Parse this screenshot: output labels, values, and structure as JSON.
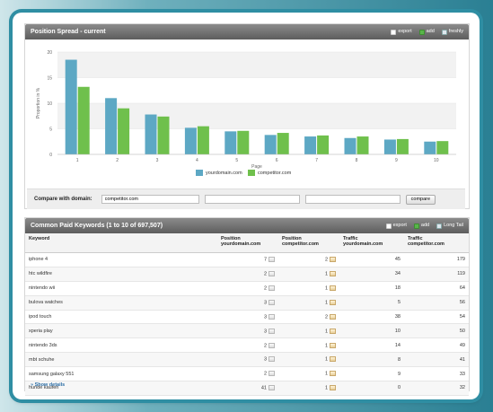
{
  "chart_panel": {
    "title": "Position Spread - current",
    "actions": [
      {
        "label": "export",
        "icon": "export-icon"
      },
      {
        "label": "add",
        "icon": "add-icon"
      },
      {
        "label": "freshly",
        "icon": "freshly-icon"
      }
    ]
  },
  "chart_data": {
    "type": "bar",
    "categories": [
      "1",
      "2",
      "3",
      "4",
      "5",
      "6",
      "7",
      "8",
      "9",
      "10"
    ],
    "series": [
      {
        "name": "yourdomain.com",
        "color": "#5da8c4",
        "values": [
          18.5,
          11,
          7.8,
          5.2,
          4.5,
          3.8,
          3.5,
          3.2,
          2.9,
          2.5
        ]
      },
      {
        "name": "competitor.com",
        "color": "#6fc04c",
        "values": [
          13.2,
          9.0,
          7.4,
          5.5,
          4.6,
          4.2,
          3.7,
          3.5,
          3.0,
          2.6
        ]
      }
    ],
    "xlabel": "Page",
    "ylabel": "Proportion in %",
    "ylim": [
      0,
      20
    ],
    "yticks": [
      "0",
      "5",
      "10",
      "15",
      "20"
    ],
    "grid": true,
    "legend": "bottom"
  },
  "compare": {
    "label": "Compare with domain:",
    "inputs": [
      "competitor.com",
      "",
      ""
    ],
    "button": "compare"
  },
  "table_panel": {
    "title": "Common Paid Keywords (1 to 10 of 697,507)",
    "actions": [
      {
        "label": "export",
        "icon": "export-icon"
      },
      {
        "label": "add",
        "icon": "add-icon"
      },
      {
        "label": "Long Tail",
        "icon": "long-tail-icon"
      }
    ],
    "columns": [
      {
        "line1": "Keyword",
        "line2": ""
      },
      {
        "line1": "Position",
        "line2": "yourdomain.com"
      },
      {
        "line1": "Position",
        "line2": "competitor.com"
      },
      {
        "line1": "Traffic",
        "line2": "yourdomain.com"
      },
      {
        "line1": "Traffic",
        "line2": "competitor.com"
      }
    ],
    "rows": [
      {
        "keyword": "iphone 4",
        "pos_your": "7",
        "pos_comp": "2",
        "traffic_your": "45",
        "traffic_comp": "179"
      },
      {
        "keyword": "htc wildfire",
        "pos_your": "2",
        "pos_comp": "1",
        "traffic_your": "34",
        "traffic_comp": "119"
      },
      {
        "keyword": "nintendo wii",
        "pos_your": "2",
        "pos_comp": "1",
        "traffic_your": "18",
        "traffic_comp": "64"
      },
      {
        "keyword": "bulova watches",
        "pos_your": "3",
        "pos_comp": "1",
        "traffic_your": "5",
        "traffic_comp": "56"
      },
      {
        "keyword": "ipod touch",
        "pos_your": "3",
        "pos_comp": "2",
        "traffic_your": "38",
        "traffic_comp": "54"
      },
      {
        "keyword": "xperia play",
        "pos_your": "3",
        "pos_comp": "1",
        "traffic_your": "10",
        "traffic_comp": "50"
      },
      {
        "keyword": "nintendo 3ds",
        "pos_your": "2",
        "pos_comp": "1",
        "traffic_your": "14",
        "traffic_comp": "49"
      },
      {
        "keyword": "mbt schuhe",
        "pos_your": "3",
        "pos_comp": "1",
        "traffic_your": "8",
        "traffic_comp": "41"
      },
      {
        "keyword": "samsung galaxy 551",
        "pos_your": "2",
        "pos_comp": "1",
        "traffic_your": "9",
        "traffic_comp": "33"
      },
      {
        "keyword": "hunde kaufen",
        "pos_your": "41",
        "pos_comp": "1",
        "traffic_your": "0",
        "traffic_comp": "32"
      }
    ],
    "show_details": "» Show details"
  }
}
